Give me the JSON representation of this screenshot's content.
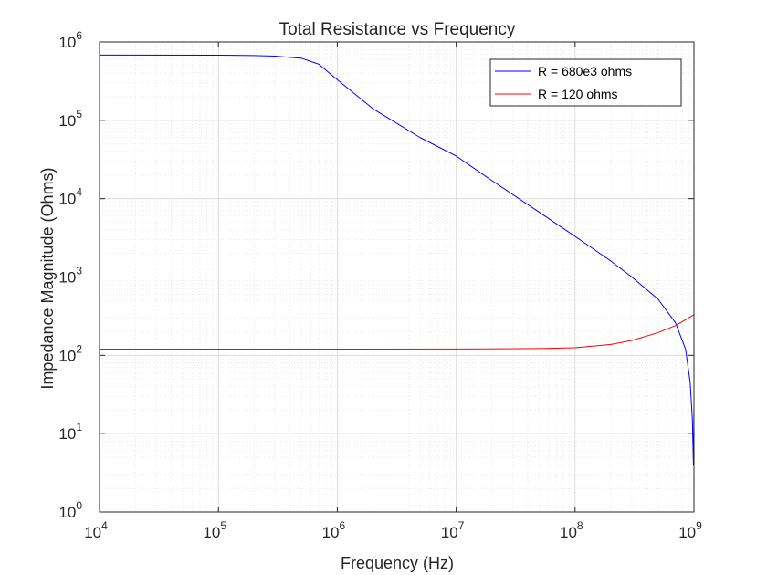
{
  "chart_data": {
    "type": "line",
    "title": "Total Resistance vs Frequency",
    "xlabel": "Frequency (Hz)",
    "ylabel": "Impedance Magnitude (Ohms)",
    "xscale": "log",
    "yscale": "log",
    "xlim": [
      10000,
      1000000000
    ],
    "ylim": [
      1,
      1000000
    ],
    "grid": "on (major and minor)",
    "legend_location": "top-right",
    "x_ticks": [
      {
        "base": "10",
        "exp": "4",
        "value": 10000
      },
      {
        "base": "10",
        "exp": "5",
        "value": 100000
      },
      {
        "base": "10",
        "exp": "6",
        "value": 1000000
      },
      {
        "base": "10",
        "exp": "7",
        "value": 10000000
      },
      {
        "base": "10",
        "exp": "8",
        "value": 100000000
      },
      {
        "base": "10",
        "exp": "9",
        "value": 1000000000
      }
    ],
    "y_ticks": [
      {
        "base": "10",
        "exp": "0",
        "value": 1
      },
      {
        "base": "10",
        "exp": "1",
        "value": 10
      },
      {
        "base": "10",
        "exp": "2",
        "value": 100
      },
      {
        "base": "10",
        "exp": "3",
        "value": 1000
      },
      {
        "base": "10",
        "exp": "4",
        "value": 10000
      },
      {
        "base": "10",
        "exp": "5",
        "value": 100000
      },
      {
        "base": "10",
        "exp": "6",
        "value": 1000000
      }
    ],
    "series": [
      {
        "name": "R = 680e3 ohms",
        "color": "#0000ff",
        "x": [
          10000,
          100000,
          200000,
          300000,
          500000,
          700000,
          1000000,
          2000000,
          5000000,
          10000000,
          20000000,
          50000000,
          100000000,
          200000000,
          300000000,
          500000000,
          700000000,
          850000000,
          930000000,
          970000000,
          990000000,
          1000000000
        ],
        "y": [
          680000,
          678000,
          672000,
          660000,
          620000,
          520000,
          330000,
          140000,
          60000,
          35000,
          17000,
          6700,
          3300,
          1600,
          1000,
          520,
          260,
          120,
          45,
          15,
          4,
          25
        ]
      },
      {
        "name": "R = 120 ohms",
        "color": "#ff0000",
        "x": [
          10000,
          1000000,
          10000000,
          50000000,
          100000000,
          200000000,
          300000000,
          500000000,
          700000000,
          850000000,
          1000000000
        ],
        "y": [
          120,
          120,
          120.5,
          122,
          125,
          138,
          155,
          195,
          240,
          285,
          330
        ]
      }
    ]
  }
}
